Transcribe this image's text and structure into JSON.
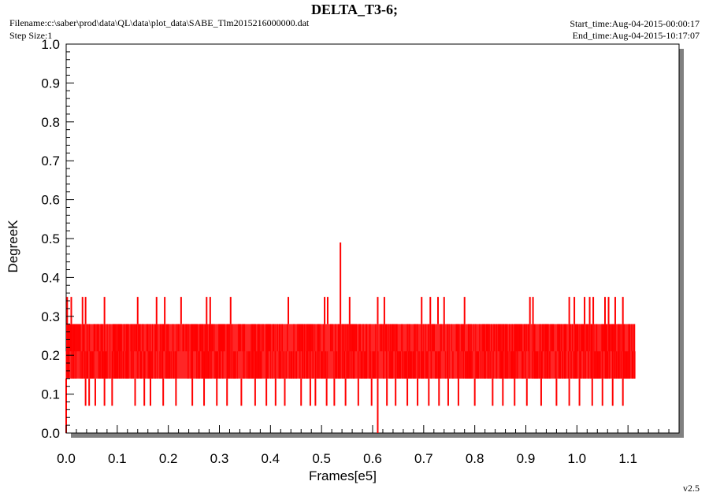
{
  "header": {
    "title": "DELTA_T3-6;",
    "filename": "Filename:c:\\saber\\prod\\data\\QL\\data\\plot_data\\SABE_Tlm2015216000000.dat",
    "step_size": "Step Size:1",
    "start_time": "Start_time:Aug-04-2015-00:00:17",
    "end_time": "End_time:Aug-04-2015-10:17:07"
  },
  "footer": {
    "version": "v2.5"
  },
  "colors": {
    "series": "#ff0000",
    "frame": "#000000",
    "shadow": "#808080"
  },
  "chart_data": {
    "type": "line",
    "title": "DELTA_T3-6;",
    "xlabel": "Frames[e5]",
    "ylabel": "DegreeK",
    "xlim": [
      0.0,
      1.2
    ],
    "ylim": [
      0.0,
      1.0
    ],
    "xticks": [
      "0.0",
      "0.1",
      "0.2",
      "0.3",
      "0.4",
      "0.5",
      "0.6",
      "0.7",
      "0.8",
      "0.9",
      "1.0",
      "1.1"
    ],
    "yticks": [
      "0.0",
      "0.1",
      "0.2",
      "0.3",
      "0.4",
      "0.5",
      "0.6",
      "0.7",
      "0.8",
      "0.9",
      "1.0"
    ],
    "grid": false,
    "series": [
      {
        "color": "#ff0000",
        "band_low": 0.14,
        "band_high": 0.28,
        "typical_levels": [
          0.14,
          0.21,
          0.28
        ],
        "x_range": [
          0.0,
          1.114
        ],
        "spikes_high": [
          {
            "x": 0.002,
            "y": 0.35
          },
          {
            "x": 0.01,
            "y": 0.35
          },
          {
            "x": 0.032,
            "y": 0.35
          },
          {
            "x": 0.038,
            "y": 0.35
          },
          {
            "x": 0.075,
            "y": 0.35
          },
          {
            "x": 0.14,
            "y": 0.35
          },
          {
            "x": 0.177,
            "y": 0.35
          },
          {
            "x": 0.193,
            "y": 0.35
          },
          {
            "x": 0.225,
            "y": 0.35
          },
          {
            "x": 0.275,
            "y": 0.35
          },
          {
            "x": 0.282,
            "y": 0.35
          },
          {
            "x": 0.322,
            "y": 0.35
          },
          {
            "x": 0.435,
            "y": 0.35
          },
          {
            "x": 0.506,
            "y": 0.35
          },
          {
            "x": 0.512,
            "y": 0.35
          },
          {
            "x": 0.537,
            "y": 0.49
          },
          {
            "x": 0.555,
            "y": 0.35
          },
          {
            "x": 0.61,
            "y": 0.35
          },
          {
            "x": 0.623,
            "y": 0.35
          },
          {
            "x": 0.696,
            "y": 0.35
          },
          {
            "x": 0.713,
            "y": 0.35
          },
          {
            "x": 0.728,
            "y": 0.35
          },
          {
            "x": 0.74,
            "y": 0.35
          },
          {
            "x": 0.78,
            "y": 0.35
          },
          {
            "x": 0.908,
            "y": 0.35
          },
          {
            "x": 0.914,
            "y": 0.35
          },
          {
            "x": 0.985,
            "y": 0.35
          },
          {
            "x": 0.995,
            "y": 0.35
          },
          {
            "x": 1.015,
            "y": 0.35
          },
          {
            "x": 1.025,
            "y": 0.35
          },
          {
            "x": 1.032,
            "y": 0.35
          },
          {
            "x": 1.055,
            "y": 0.35
          },
          {
            "x": 1.062,
            "y": 0.35
          },
          {
            "x": 1.075,
            "y": 0.35
          },
          {
            "x": 1.09,
            "y": 0.35
          }
        ],
        "spikes_low": [
          {
            "x": 0.0,
            "y": 0.0
          },
          {
            "x": 0.038,
            "y": 0.07
          },
          {
            "x": 0.045,
            "y": 0.07
          },
          {
            "x": 0.057,
            "y": 0.07
          },
          {
            "x": 0.075,
            "y": 0.07
          },
          {
            "x": 0.09,
            "y": 0.07
          },
          {
            "x": 0.135,
            "y": 0.07
          },
          {
            "x": 0.153,
            "y": 0.07
          },
          {
            "x": 0.165,
            "y": 0.07
          },
          {
            "x": 0.19,
            "y": 0.07
          },
          {
            "x": 0.215,
            "y": 0.07
          },
          {
            "x": 0.247,
            "y": 0.07
          },
          {
            "x": 0.27,
            "y": 0.07
          },
          {
            "x": 0.295,
            "y": 0.07
          },
          {
            "x": 0.315,
            "y": 0.07
          },
          {
            "x": 0.343,
            "y": 0.07
          },
          {
            "x": 0.37,
            "y": 0.07
          },
          {
            "x": 0.392,
            "y": 0.07
          },
          {
            "x": 0.41,
            "y": 0.07
          },
          {
            "x": 0.428,
            "y": 0.07
          },
          {
            "x": 0.46,
            "y": 0.07
          },
          {
            "x": 0.478,
            "y": 0.07
          },
          {
            "x": 0.488,
            "y": 0.07
          },
          {
            "x": 0.51,
            "y": 0.07
          },
          {
            "x": 0.525,
            "y": 0.07
          },
          {
            "x": 0.547,
            "y": 0.07
          },
          {
            "x": 0.572,
            "y": 0.07
          },
          {
            "x": 0.598,
            "y": 0.07
          },
          {
            "x": 0.61,
            "y": 0.0
          },
          {
            "x": 0.628,
            "y": 0.07
          },
          {
            "x": 0.645,
            "y": 0.07
          },
          {
            "x": 0.668,
            "y": 0.07
          },
          {
            "x": 0.688,
            "y": 0.07
          },
          {
            "x": 0.71,
            "y": 0.07
          },
          {
            "x": 0.73,
            "y": 0.07
          },
          {
            "x": 0.748,
            "y": 0.07
          },
          {
            "x": 0.768,
            "y": 0.07
          },
          {
            "x": 0.8,
            "y": 0.07
          },
          {
            "x": 0.835,
            "y": 0.07
          },
          {
            "x": 0.855,
            "y": 0.07
          },
          {
            "x": 0.878,
            "y": 0.07
          },
          {
            "x": 0.902,
            "y": 0.07
          },
          {
            "x": 0.93,
            "y": 0.07
          },
          {
            "x": 0.96,
            "y": 0.07
          },
          {
            "x": 0.985,
            "y": 0.07
          },
          {
            "x": 1.005,
            "y": 0.07
          },
          {
            "x": 1.03,
            "y": 0.07
          },
          {
            "x": 1.05,
            "y": 0.07
          },
          {
            "x": 1.07,
            "y": 0.07
          },
          {
            "x": 1.09,
            "y": 0.07
          }
        ]
      }
    ]
  }
}
